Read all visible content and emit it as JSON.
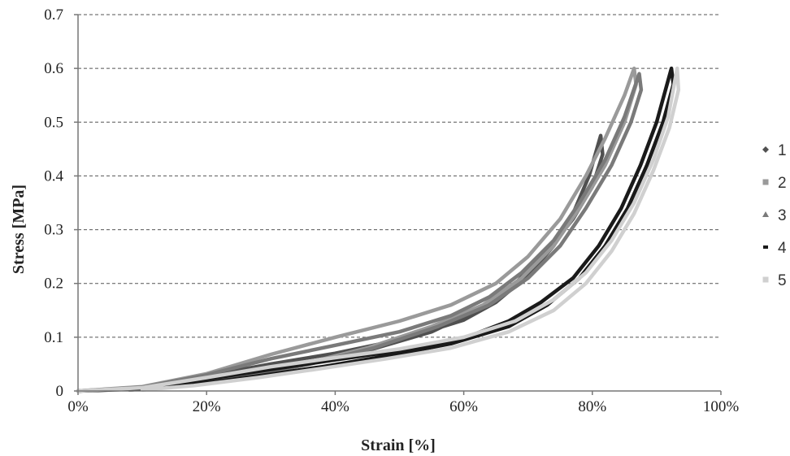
{
  "chart_data": {
    "type": "line",
    "title": "",
    "xlabel": "Strain [%]",
    "ylabel": "Stress [MPa]",
    "xlim": [
      0,
      100
    ],
    "ylim": [
      0,
      0.7
    ],
    "x_ticks": [
      0,
      20,
      40,
      60,
      80,
      100
    ],
    "x_tick_labels": [
      "0%",
      "20%",
      "40%",
      "60%",
      "80%",
      "100%"
    ],
    "y_ticks": [
      0,
      0.1,
      0.2,
      0.3,
      0.4,
      0.5,
      0.6,
      0.7
    ],
    "y_tick_labels": [
      "0",
      "0.1",
      "0.2",
      "0.3",
      "0.4",
      "0.5",
      "0.6",
      "0.7"
    ],
    "grid": "horizontal-dashed",
    "legend_position": "right",
    "series": [
      {
        "name": "1",
        "color": "#505050",
        "marker": "diamond",
        "points": [
          [
            0,
            0
          ],
          [
            10,
            0.005
          ],
          [
            20,
            0.028
          ],
          [
            30,
            0.05
          ],
          [
            40,
            0.07
          ],
          [
            50,
            0.095
          ],
          [
            60,
            0.132
          ],
          [
            65,
            0.165
          ],
          [
            70,
            0.215
          ],
          [
            74,
            0.27
          ],
          [
            77,
            0.33
          ],
          [
            79.5,
            0.4
          ],
          [
            81.3,
            0.475
          ],
          [
            81.6,
            0.44
          ],
          [
            80,
            0.38
          ],
          [
            77,
            0.32
          ],
          [
            73,
            0.26
          ],
          [
            68,
            0.2
          ],
          [
            62,
            0.15
          ],
          [
            55,
            0.11
          ],
          [
            45,
            0.075
          ],
          [
            35,
            0.048
          ],
          [
            25,
            0.025
          ],
          [
            15,
            0.01
          ],
          [
            8,
            0.002
          ]
        ]
      },
      {
        "name": "2",
        "color": "#9a9a9a",
        "marker": "square",
        "points": [
          [
            0,
            0
          ],
          [
            10,
            0.008
          ],
          [
            20,
            0.032
          ],
          [
            30,
            0.068
          ],
          [
            40,
            0.1
          ],
          [
            50,
            0.13
          ],
          [
            58,
            0.16
          ],
          [
            65,
            0.2
          ],
          [
            70,
            0.25
          ],
          [
            75,
            0.32
          ],
          [
            79,
            0.4
          ],
          [
            82,
            0.47
          ],
          [
            85,
            0.55
          ],
          [
            86.5,
            0.6
          ],
          [
            86.8,
            0.57
          ],
          [
            85,
            0.5
          ],
          [
            82,
            0.42
          ],
          [
            78,
            0.34
          ],
          [
            74,
            0.27
          ],
          [
            69,
            0.21
          ],
          [
            63,
            0.16
          ],
          [
            55,
            0.12
          ],
          [
            45,
            0.08
          ],
          [
            35,
            0.05
          ],
          [
            25,
            0.025
          ],
          [
            15,
            0.008
          ],
          [
            8,
            0.002
          ]
        ]
      },
      {
        "name": "3",
        "color": "#7a7a7a",
        "marker": "triangle",
        "points": [
          [
            0,
            0
          ],
          [
            10,
            0.007
          ],
          [
            20,
            0.03
          ],
          [
            30,
            0.06
          ],
          [
            40,
            0.085
          ],
          [
            50,
            0.11
          ],
          [
            58,
            0.14
          ],
          [
            64,
            0.175
          ],
          [
            69,
            0.22
          ],
          [
            74,
            0.28
          ],
          [
            78,
            0.35
          ],
          [
            82,
            0.43
          ],
          [
            85,
            0.51
          ],
          [
            87.3,
            0.59
          ],
          [
            87.6,
            0.56
          ],
          [
            86,
            0.5
          ],
          [
            83,
            0.42
          ],
          [
            79,
            0.34
          ],
          [
            75,
            0.27
          ],
          [
            70,
            0.21
          ],
          [
            64,
            0.16
          ],
          [
            56,
            0.12
          ],
          [
            46,
            0.08
          ],
          [
            36,
            0.05
          ],
          [
            26,
            0.028
          ],
          [
            16,
            0.01
          ],
          [
            8,
            0.002
          ]
        ]
      },
      {
        "name": "4",
        "color": "#1a1a1a",
        "marker": "dash",
        "points": [
          [
            0,
            0
          ],
          [
            10,
            0.004
          ],
          [
            20,
            0.022
          ],
          [
            30,
            0.04
          ],
          [
            40,
            0.058
          ],
          [
            50,
            0.075
          ],
          [
            60,
            0.098
          ],
          [
            67,
            0.13
          ],
          [
            72,
            0.165
          ],
          [
            77,
            0.21
          ],
          [
            81,
            0.27
          ],
          [
            84.5,
            0.34
          ],
          [
            87.5,
            0.42
          ],
          [
            90,
            0.5
          ],
          [
            92.3,
            0.6
          ],
          [
            92.6,
            0.57
          ],
          [
            91,
            0.5
          ],
          [
            88.5,
            0.42
          ],
          [
            85.5,
            0.34
          ],
          [
            82,
            0.27
          ],
          [
            78,
            0.21
          ],
          [
            73,
            0.16
          ],
          [
            67,
            0.12
          ],
          [
            58,
            0.088
          ],
          [
            48,
            0.065
          ],
          [
            38,
            0.045
          ],
          [
            28,
            0.028
          ],
          [
            18,
            0.012
          ],
          [
            10,
            0.003
          ]
        ]
      },
      {
        "name": "5",
        "color": "#d0d0d0",
        "marker": "square",
        "points": [
          [
            0,
            0
          ],
          [
            10,
            0.006
          ],
          [
            20,
            0.025
          ],
          [
            30,
            0.045
          ],
          [
            40,
            0.062
          ],
          [
            50,
            0.078
          ],
          [
            60,
            0.1
          ],
          [
            68,
            0.13
          ],
          [
            74,
            0.17
          ],
          [
            79,
            0.22
          ],
          [
            83,
            0.28
          ],
          [
            86.5,
            0.35
          ],
          [
            89.5,
            0.43
          ],
          [
            91.8,
            0.51
          ],
          [
            93.2,
            0.6
          ],
          [
            93.4,
            0.56
          ],
          [
            92,
            0.49
          ],
          [
            89.5,
            0.41
          ],
          [
            86.5,
            0.33
          ],
          [
            83,
            0.26
          ],
          [
            79,
            0.2
          ],
          [
            74,
            0.15
          ],
          [
            67,
            0.11
          ],
          [
            58,
            0.08
          ],
          [
            48,
            0.06
          ],
          [
            38,
            0.042
          ],
          [
            28,
            0.025
          ],
          [
            18,
            0.01
          ],
          [
            10,
            0.002
          ]
        ]
      }
    ]
  }
}
